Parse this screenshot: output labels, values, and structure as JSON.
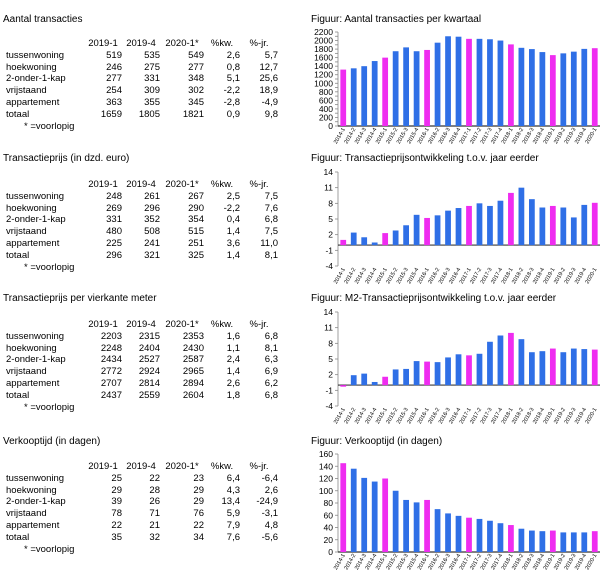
{
  "sections": [
    {
      "title": "Aantal transacties",
      "headers": [
        "",
        "2019-1",
        "2019-4",
        "2020-1*",
        "%kw.",
        "%-jr."
      ],
      "rows": [
        [
          "tussenwoning",
          "519",
          "535",
          "549",
          "2,6",
          "5,7"
        ],
        [
          "hoekwoning",
          "246",
          "275",
          "277",
          "0,8",
          "12,7"
        ],
        [
          "2-onder-1-kap",
          "277",
          "331",
          "348",
          "5,1",
          "25,6"
        ],
        [
          "vrijstaand",
          "254",
          "309",
          "302",
          "-2,2",
          "18,9"
        ],
        [
          "appartement",
          "363",
          "355",
          "345",
          "-2,8",
          "-4,9"
        ],
        [
          "totaal",
          "1659",
          "1805",
          "1821",
          "0,9",
          "9,8"
        ]
      ],
      "note": "* =voorlopig"
    },
    {
      "title": "Transactieprijs (in dzd. euro)",
      "headers": [
        "",
        "2019-1",
        "2019-4",
        "2020-1*",
        "%kw.",
        "%-jr."
      ],
      "rows": [
        [
          "tussenwoning",
          "248",
          "261",
          "267",
          "2,5",
          "7,5"
        ],
        [
          "hoekwoning",
          "269",
          "296",
          "290",
          "-2,2",
          "7,6"
        ],
        [
          "2-onder-1-kap",
          "331",
          "352",
          "354",
          "0,4",
          "6,8"
        ],
        [
          "vrijstaand",
          "480",
          "508",
          "515",
          "1,4",
          "7,5"
        ],
        [
          "appartement",
          "225",
          "241",
          "251",
          "3,6",
          "11,0"
        ],
        [
          "totaal",
          "296",
          "321",
          "325",
          "1,4",
          "8,1"
        ]
      ],
      "note": "* =voorlopig"
    },
    {
      "title": "Transactieprijs per vierkante meter",
      "headers": [
        "",
        "2019-1",
        "2019-4",
        "2020-1*",
        "%kw.",
        "%-jr."
      ],
      "rows": [
        [
          "tussenwoning",
          "2203",
          "2315",
          "2353",
          "1,6",
          "6,8"
        ],
        [
          "hoekwoning",
          "2248",
          "2404",
          "2430",
          "1,1",
          "8,1"
        ],
        [
          "2-onder-1-kap",
          "2434",
          "2527",
          "2587",
          "2,4",
          "6,3"
        ],
        [
          "vrijstaand",
          "2772",
          "2924",
          "2965",
          "1,4",
          "6,9"
        ],
        [
          "appartement",
          "2707",
          "2814",
          "2894",
          "2,6",
          "6,2"
        ],
        [
          "totaal",
          "2437",
          "2559",
          "2604",
          "1,8",
          "6,8"
        ]
      ],
      "note": "* =voorlopig"
    },
    {
      "title": "Verkooptijd (in dagen)",
      "headers": [
        "",
        "2019-1",
        "2019-4",
        "2020-1*",
        "%kw.",
        "%-jr."
      ],
      "rows": [
        [
          "tussenwoning",
          "25",
          "22",
          "23",
          "6,4",
          "-6,4"
        ],
        [
          "hoekwoning",
          "29",
          "28",
          "29",
          "4,3",
          "2,6"
        ],
        [
          "2-onder-1-kap",
          "39",
          "26",
          "29",
          "13,4",
          "-24,9"
        ],
        [
          "vrijstaand",
          "78",
          "71",
          "76",
          "5,9",
          "-3,1"
        ],
        [
          "appartement",
          "22",
          "21",
          "22",
          "7,9",
          "4,8"
        ],
        [
          "totaal",
          "35",
          "32",
          "34",
          "7,6",
          "-5,6"
        ]
      ],
      "note": "* =voorlopig"
    }
  ],
  "colors": {
    "bar": "#2f6fe6",
    "highlight": "#ef2cf0",
    "axis": "#888888"
  },
  "chart_data": [
    {
      "type": "bar",
      "title": "Figuur: Aantal transacties per kwartaal",
      "categories": [
        "2014-1",
        "2014-2",
        "2014-3",
        "2014-4",
        "2015-1",
        "2015-2",
        "2015-3",
        "2015-4",
        "2016-1",
        "2016-2",
        "2016-3",
        "2016-4",
        "2017-1",
        "2017-2",
        "2017-3",
        "2017-4",
        "2018-1",
        "2018-2",
        "2018-3",
        "2018-4",
        "2019-1",
        "2019-2",
        "2019-3",
        "2019-4",
        "2020-1"
      ],
      "values": [
        1320,
        1350,
        1400,
        1520,
        1600,
        1750,
        1840,
        1750,
        1780,
        1950,
        2100,
        2090,
        2040,
        2040,
        2030,
        2000,
        1910,
        1830,
        1800,
        1730,
        1659,
        1700,
        1740,
        1805,
        1821
      ],
      "highlight_indices": [
        0,
        4,
        8,
        12,
        16,
        20,
        24
      ],
      "ylim": [
        0,
        2200
      ],
      "yticks": [
        0,
        100,
        200,
        300,
        400,
        500,
        600,
        700,
        800,
        900,
        1000,
        1100,
        1200,
        1300,
        1400,
        1500,
        1600,
        1700,
        1800,
        1900,
        2000,
        2100,
        2200
      ],
      "ytick_labels": [
        "0",
        "",
        "200",
        "",
        "400",
        "",
        "600",
        "",
        "800",
        "",
        "1000",
        "",
        "1200",
        "",
        "1400",
        "",
        "1600",
        "",
        "1800",
        "",
        "2000",
        "",
        "2200"
      ],
      "grid": false
    },
    {
      "type": "bar",
      "title": "Figuur: Transactieprijsontwikkeling t.o.v. jaar eerder",
      "categories": [
        "2014-1",
        "2014-2",
        "2014-3",
        "2014-4",
        "2015-1",
        "2015-2",
        "2015-3",
        "2015-4",
        "2016-1",
        "2016-2",
        "2016-3",
        "2016-4",
        "2017-1",
        "2017-2",
        "2017-3",
        "2017-4",
        "2018-1",
        "2018-2",
        "2018-3",
        "2018-4",
        "2019-1",
        "2019-2",
        "2019-3",
        "2019-4",
        "2020-1"
      ],
      "values": [
        1.0,
        2.4,
        1.5,
        0.5,
        2.3,
        2.8,
        3.8,
        5.8,
        5.2,
        5.7,
        6.6,
        7.1,
        7.5,
        8.0,
        7.5,
        8.5,
        10.0,
        11.0,
        8.8,
        7.2,
        7.5,
        7.2,
        5.3,
        7.7,
        8.1
      ],
      "highlight_indices": [
        0,
        4,
        8,
        12,
        16,
        20,
        24
      ],
      "ylim": [
        -4,
        14
      ],
      "yticks": [
        -4,
        -1,
        2,
        5,
        8,
        11,
        14
      ],
      "ytick_labels": [
        "-4",
        "-1",
        "2",
        "5",
        "8",
        "11",
        "14"
      ],
      "grid": false
    },
    {
      "type": "bar",
      "title": "Figuur: M2-Transactieprijsontwikkeling t.o.v. jaar eerder",
      "categories": [
        "2014-1",
        "2014-2",
        "2014-3",
        "2014-4",
        "2015-1",
        "2015-2",
        "2015-3",
        "2015-4",
        "2016-1",
        "2016-2",
        "2016-3",
        "2016-4",
        "2017-1",
        "2017-2",
        "2017-3",
        "2017-4",
        "2018-1",
        "2018-2",
        "2018-3",
        "2018-4",
        "2019-1",
        "2019-2",
        "2019-3",
        "2019-4",
        "2020-1"
      ],
      "values": [
        -0.3,
        1.9,
        2.2,
        0.6,
        1.6,
        3.0,
        3.1,
        4.6,
        4.5,
        4.4,
        5.3,
        5.9,
        5.7,
        6.0,
        8.3,
        9.5,
        10.0,
        8.8,
        6.3,
        6.5,
        7.0,
        6.3,
        7.0,
        6.9,
        6.8
      ],
      "highlight_indices": [
        0,
        4,
        8,
        12,
        16,
        20,
        24
      ],
      "ylim": [
        -4,
        14
      ],
      "yticks": [
        -4,
        -1,
        2,
        5,
        8,
        11,
        14
      ],
      "ytick_labels": [
        "-4",
        "-1",
        "2",
        "5",
        "8",
        "11",
        "14"
      ],
      "grid": false
    },
    {
      "type": "bar",
      "title": "Figuur: Verkooptijd (in dagen)",
      "categories": [
        "2014-1",
        "2014-2",
        "2014-3",
        "2014-4",
        "2015-1",
        "2015-2",
        "2015-3",
        "2015-4",
        "2016-1",
        "2016-2",
        "2016-3",
        "2016-4",
        "2017-1",
        "2017-2",
        "2017-3",
        "2017-4",
        "2018-1",
        "2018-2",
        "2018-3",
        "2018-4",
        "2019-1",
        "2019-2",
        "2019-3",
        "2019-4",
        "2020-1"
      ],
      "values": [
        145,
        136,
        121,
        115,
        120,
        100,
        85,
        81,
        85,
        70,
        63,
        59,
        56,
        54,
        51,
        47,
        44,
        38,
        35,
        34,
        35,
        32,
        32,
        32,
        34
      ],
      "highlight_indices": [
        0,
        4,
        8,
        12,
        16,
        20,
        24
      ],
      "ylim": [
        0,
        160
      ],
      "yticks": [
        0,
        20,
        40,
        60,
        80,
        100,
        120,
        140,
        160
      ],
      "ytick_labels": [
        "0",
        "20",
        "40",
        "60",
        "80",
        "100",
        "120",
        "140",
        "160"
      ],
      "grid": false
    }
  ]
}
